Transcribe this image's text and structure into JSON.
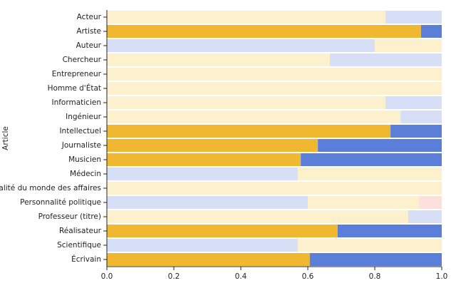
{
  "chart_data": {
    "type": "stacked-barh",
    "ylabel": "Article",
    "categories": [
      "Acteur",
      "Artiste",
      "Auteur",
      "Chercheur",
      "Entrepreneur",
      "Homme d'État",
      "Informaticien",
      "Ingénieur",
      "Intellectuel",
      "Journaliste",
      "Musicien",
      "Médecin",
      "Personnalité du monde des affaires",
      "Personnalité politique",
      "Professeur (titre)",
      "Réalisateur",
      "Scientifique",
      "Écrivain"
    ],
    "series": [
      {
        "values": [
          0.832,
          0.938,
          0.8,
          0.666,
          1.0,
          1.0,
          0.832,
          0.877,
          0.847,
          0.63,
          0.579,
          0.57,
          1.0,
          0.6,
          0.9,
          0.689,
          0.57,
          0.606
        ],
        "colors": [
          "#fdf0cc",
          "#f0b830",
          "#d6dff5",
          "#fdf0cc",
          "#fdf0cc",
          "#fdf0cc",
          "#fdf0cc",
          "#fdf0cc",
          "#f0b830",
          "#f0b830",
          "#f0b830",
          "#d6dff5",
          "#fdf0cc",
          "#d6dff5",
          "#fdf0cc",
          "#f0b830",
          "#d6dff5",
          "#f0b830"
        ]
      },
      {
        "values": [
          0.168,
          0.062,
          0.2,
          0.334,
          0,
          0,
          0.168,
          0.123,
          0.153,
          0.37,
          0.421,
          0.43,
          0,
          0.332,
          0.1,
          0.311,
          0.43,
          0.394
        ],
        "colors": [
          "#d6dff5",
          "#5b7fd8",
          "#fdf0cc",
          "#d6dff5",
          "#d6dff5",
          "#d6dff5",
          "#d6dff5",
          "#d6dff5",
          "#5b7fd8",
          "#5b7fd8",
          "#5b7fd8",
          "#fdf0cc",
          "#d6dff5",
          "#fdf0cc",
          "#d6dff5",
          "#5b7fd8",
          "#fdf0cc",
          "#5b7fd8"
        ]
      },
      {
        "values": [
          0,
          0,
          0,
          0,
          0,
          0,
          0,
          0,
          0,
          0,
          0,
          0,
          0,
          0.068,
          0,
          0,
          0,
          0
        ],
        "colors": [
          "#fde0dc",
          "#fde0dc",
          "#fde0dc",
          "#fde0dc",
          "#fde0dc",
          "#fde0dc",
          "#fde0dc",
          "#fde0dc",
          "#fde0dc",
          "#fde0dc",
          "#fde0dc",
          "#fde0dc",
          "#fde0dc",
          "#fde0dc",
          "#fde0dc",
          "#fde0dc",
          "#fde0dc",
          "#fde0dc"
        ]
      }
    ],
    "xlim": [
      0,
      1
    ],
    "xticks": [
      {
        "value": 0,
        "label": "0.0"
      },
      0.2,
      0.4,
      0.6,
      0.8,
      {
        "value": 1,
        "label": "1.0"
      }
    ]
  }
}
